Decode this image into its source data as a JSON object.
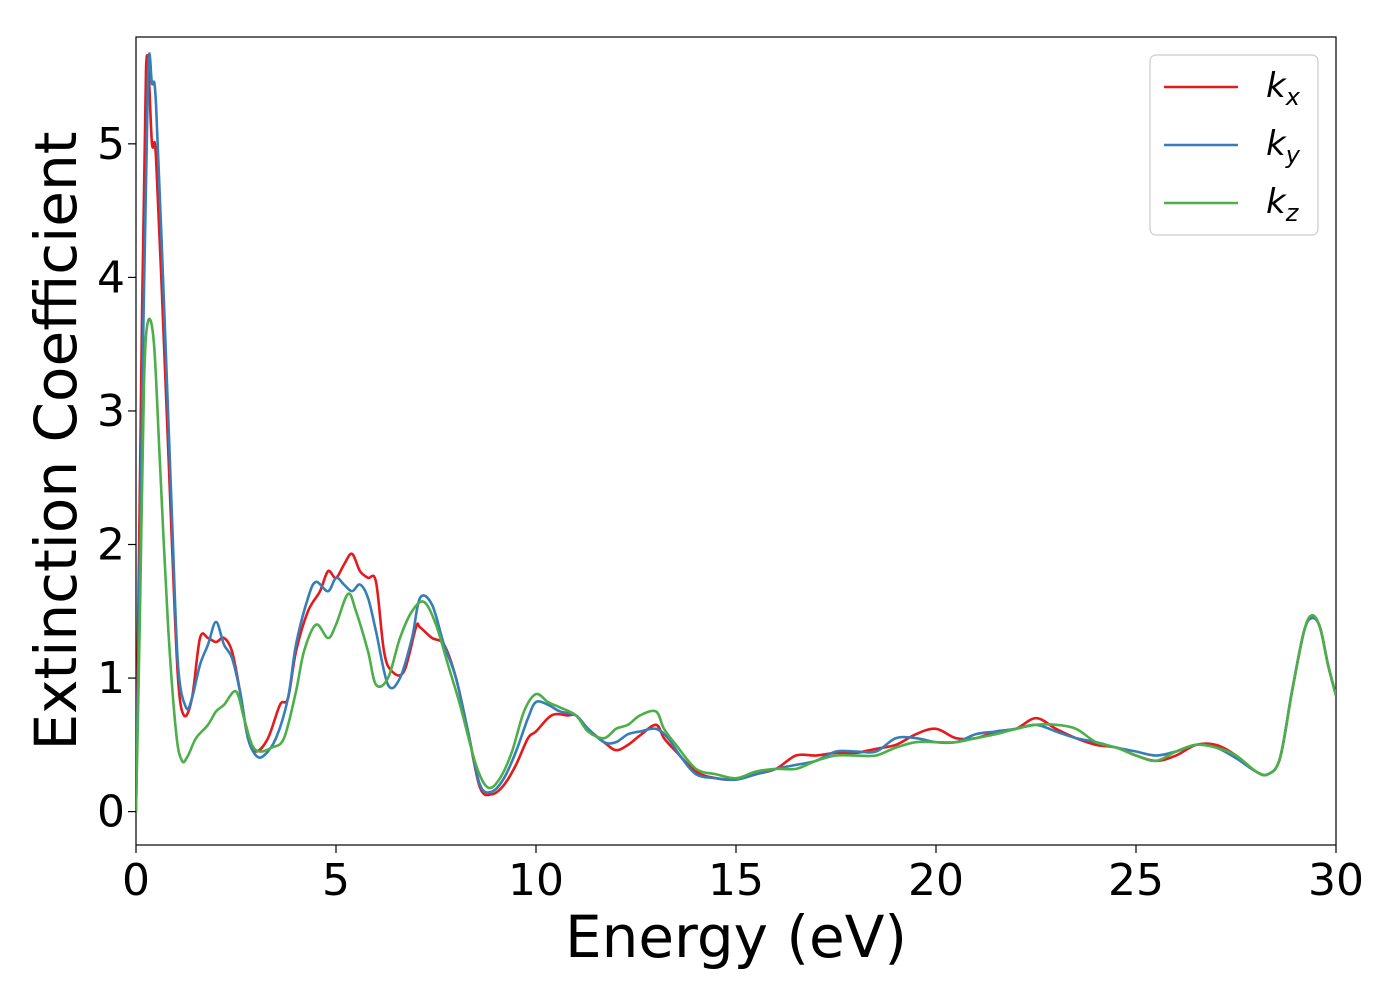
{
  "chart_data": {
    "type": "line",
    "xlabel": "Energy (eV)",
    "ylabel": "Extinction Coefficient",
    "xlim": [
      0,
      30
    ],
    "ylim": [
      -0.25,
      5.8
    ],
    "xticks": [
      0,
      5,
      10,
      15,
      20,
      25,
      30
    ],
    "yticks": [
      0,
      1,
      2,
      3,
      4,
      5
    ],
    "grid": false,
    "legend_position": "top-right",
    "series": [
      {
        "name": "k_x",
        "label_main": "k",
        "label_sub": "x",
        "color": "#e41a1c",
        "x": [
          0,
          0.1,
          0.25,
          0.4,
          0.5,
          0.7,
          0.9,
          1.05,
          1.2,
          1.4,
          1.6,
          1.8,
          2.0,
          2.2,
          2.4,
          2.6,
          2.8,
          3.0,
          3.3,
          3.6,
          3.8,
          4.0,
          4.3,
          4.6,
          4.8,
          5.0,
          5.2,
          5.4,
          5.6,
          5.8,
          6.0,
          6.2,
          6.4,
          6.7,
          7.0,
          7.1,
          7.4,
          7.7,
          8.0,
          8.3,
          8.6,
          8.9,
          9.2,
          9.5,
          9.8,
          10.0,
          10.3,
          10.5,
          10.8,
          11.0,
          11.3,
          11.7,
          12.0,
          12.3,
          12.6,
          13.0,
          13.2,
          13.5,
          14.0,
          14.5,
          15.0,
          15.5,
          16.0,
          16.5,
          17.0,
          17.5,
          18.0,
          18.5,
          19.0,
          19.5,
          20.0,
          20.5,
          21.0,
          21.5,
          22.0,
          22.5,
          23.0,
          23.5,
          24.0,
          24.5,
          25.0,
          25.5,
          26.0,
          26.5,
          27.0,
          27.5,
          28.0,
          28.3,
          28.6,
          28.9,
          29.2,
          29.4,
          29.6,
          29.8,
          30.0
        ],
        "y": [
          0,
          2.5,
          5.55,
          5.0,
          4.9,
          3.5,
          2.0,
          1.0,
          0.72,
          0.85,
          1.3,
          1.3,
          1.27,
          1.3,
          1.2,
          0.9,
          0.55,
          0.45,
          0.55,
          0.8,
          0.85,
          1.2,
          1.5,
          1.65,
          1.8,
          1.75,
          1.85,
          1.93,
          1.8,
          1.75,
          1.72,
          1.2,
          1.05,
          1.05,
          1.38,
          1.38,
          1.3,
          1.25,
          1.0,
          0.6,
          0.18,
          0.13,
          0.2,
          0.35,
          0.55,
          0.6,
          0.7,
          0.73,
          0.72,
          0.72,
          0.62,
          0.52,
          0.46,
          0.5,
          0.57,
          0.65,
          0.55,
          0.45,
          0.3,
          0.25,
          0.24,
          0.28,
          0.32,
          0.42,
          0.42,
          0.44,
          0.44,
          0.47,
          0.5,
          0.58,
          0.62,
          0.55,
          0.55,
          0.6,
          0.62,
          0.7,
          0.62,
          0.55,
          0.5,
          0.48,
          0.42,
          0.38,
          0.42,
          0.5,
          0.5,
          0.42,
          0.3,
          0.28,
          0.4,
          0.9,
          1.35,
          1.45,
          1.38,
          1.1,
          0.87
        ]
      },
      {
        "name": "k_y",
        "label_main": "k",
        "label_sub": "y",
        "color": "#377eb8",
        "x": [
          0,
          0.15,
          0.3,
          0.4,
          0.5,
          0.7,
          0.9,
          1.05,
          1.25,
          1.4,
          1.6,
          1.8,
          2.0,
          2.2,
          2.4,
          2.6,
          2.8,
          3.0,
          3.2,
          3.5,
          3.8,
          4.0,
          4.3,
          4.5,
          4.8,
          5.0,
          5.2,
          5.4,
          5.6,
          5.8,
          6.0,
          6.3,
          6.6,
          6.9,
          7.1,
          7.4,
          7.7,
          8.0,
          8.3,
          8.6,
          8.9,
          9.2,
          9.5,
          9.8,
          10.0,
          10.3,
          10.6,
          11.0,
          11.3,
          11.7,
          12.0,
          12.3,
          12.6,
          13.0,
          13.3,
          13.6,
          14.0,
          14.5,
          15.0,
          15.5,
          16.0,
          16.5,
          17.0,
          17.5,
          18.0,
          18.5,
          19.0,
          19.5,
          20.0,
          20.5,
          21.0,
          21.5,
          22.0,
          22.5,
          23.0,
          23.5,
          24.0,
          24.5,
          25.0,
          25.5,
          26.0,
          26.5,
          27.0,
          27.5,
          28.0,
          28.3,
          28.6,
          28.9,
          29.2,
          29.4,
          29.6,
          29.8,
          30.0
        ],
        "y": [
          0,
          3.0,
          5.5,
          5.45,
          5.3,
          3.8,
          2.2,
          1.1,
          0.78,
          0.85,
          1.1,
          1.25,
          1.42,
          1.25,
          1.15,
          0.9,
          0.55,
          0.42,
          0.42,
          0.55,
          0.85,
          1.25,
          1.6,
          1.72,
          1.65,
          1.75,
          1.7,
          1.65,
          1.7,
          1.6,
          1.35,
          0.95,
          1.0,
          1.3,
          1.6,
          1.55,
          1.25,
          1.0,
          0.6,
          0.2,
          0.15,
          0.25,
          0.45,
          0.7,
          0.82,
          0.8,
          0.75,
          0.72,
          0.62,
          0.52,
          0.52,
          0.58,
          0.6,
          0.62,
          0.55,
          0.42,
          0.28,
          0.25,
          0.24,
          0.28,
          0.32,
          0.35,
          0.38,
          0.45,
          0.45,
          0.45,
          0.55,
          0.55,
          0.52,
          0.52,
          0.58,
          0.6,
          0.62,
          0.65,
          0.6,
          0.55,
          0.52,
          0.48,
          0.45,
          0.42,
          0.45,
          0.5,
          0.48,
          0.4,
          0.3,
          0.28,
          0.4,
          0.9,
          1.35,
          1.45,
          1.38,
          1.1,
          0.87
        ]
      },
      {
        "name": "k_z",
        "label_main": "k",
        "label_sub": "z",
        "color": "#4daf4a",
        "x": [
          0,
          0.1,
          0.2,
          0.3,
          0.45,
          0.6,
          0.8,
          1.0,
          1.15,
          1.3,
          1.5,
          1.8,
          2.0,
          2.2,
          2.5,
          2.7,
          2.9,
          3.1,
          3.4,
          3.7,
          4.0,
          4.2,
          4.5,
          4.8,
          5.0,
          5.3,
          5.5,
          5.8,
          6.0,
          6.3,
          6.6,
          6.9,
          7.2,
          7.5,
          7.8,
          8.1,
          8.5,
          8.8,
          9.1,
          9.4,
          9.7,
          10.0,
          10.3,
          10.6,
          11.0,
          11.3,
          11.7,
          12.0,
          12.3,
          12.6,
          13.0,
          13.2,
          13.5,
          14.0,
          14.5,
          15.0,
          15.5,
          16.0,
          16.5,
          17.0,
          17.5,
          18.0,
          18.5,
          19.0,
          19.5,
          20.0,
          20.5,
          21.0,
          21.5,
          22.0,
          22.5,
          23.0,
          23.5,
          24.0,
          24.5,
          25.0,
          25.5,
          26.0,
          26.5,
          27.0,
          27.5,
          28.0,
          28.3,
          28.6,
          28.9,
          29.2,
          29.4,
          29.6,
          29.8,
          30.0
        ],
        "y": [
          0,
          1.5,
          3.2,
          3.67,
          3.5,
          2.6,
          1.4,
          0.6,
          0.38,
          0.42,
          0.55,
          0.65,
          0.75,
          0.8,
          0.9,
          0.7,
          0.5,
          0.45,
          0.48,
          0.55,
          0.9,
          1.2,
          1.4,
          1.3,
          1.4,
          1.63,
          1.5,
          1.2,
          0.95,
          1.0,
          1.3,
          1.5,
          1.57,
          1.4,
          1.1,
          0.8,
          0.35,
          0.18,
          0.25,
          0.45,
          0.75,
          0.88,
          0.82,
          0.78,
          0.72,
          0.6,
          0.55,
          0.62,
          0.65,
          0.72,
          0.75,
          0.62,
          0.5,
          0.32,
          0.28,
          0.25,
          0.3,
          0.32,
          0.32,
          0.38,
          0.42,
          0.42,
          0.42,
          0.48,
          0.52,
          0.52,
          0.52,
          0.55,
          0.58,
          0.62,
          0.65,
          0.65,
          0.62,
          0.52,
          0.48,
          0.42,
          0.38,
          0.45,
          0.5,
          0.48,
          0.42,
          0.3,
          0.28,
          0.4,
          0.9,
          1.35,
          1.47,
          1.38,
          1.1,
          0.87
        ]
      }
    ]
  }
}
